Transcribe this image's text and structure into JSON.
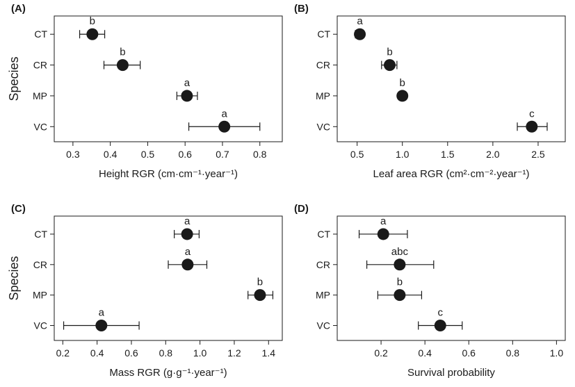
{
  "chart_data": [
    {
      "type": "scatter",
      "panel_label": "(A)",
      "title": "",
      "xlabel": "Height RGR (cm·cm⁻¹·year⁻¹)",
      "ylabel": "Species",
      "categories": [
        "CT",
        "CR",
        "MP",
        "VC"
      ],
      "values": [
        0.352,
        0.433,
        0.605,
        0.705
      ],
      "ci_low": [
        0.318,
        0.383,
        0.578,
        0.61
      ],
      "ci_high": [
        0.385,
        0.48,
        0.633,
        0.8
      ],
      "letters": [
        "b",
        "b",
        "a",
        "a"
      ],
      "xlim": [
        0.25,
        0.86
      ],
      "xticks": [
        0.3,
        0.4,
        0.5,
        0.6,
        0.7,
        0.8
      ],
      "xtick_labels": [
        "0.3",
        "0.4",
        "0.5",
        "0.6",
        "0.7",
        "0.8"
      ],
      "grid": false
    },
    {
      "type": "scatter",
      "panel_label": "(B)",
      "title": "",
      "xlabel": "Leaf area RGR (cm²·cm⁻²·year⁻¹)",
      "ylabel": "",
      "categories": [
        "CT",
        "CR",
        "MP",
        "VC"
      ],
      "values": [
        0.53,
        0.86,
        1.0,
        2.43
      ],
      "ci_low": [
        0.48,
        0.77,
        0.96,
        2.27
      ],
      "ci_high": [
        0.57,
        0.94,
        1.03,
        2.6
      ],
      "letters": [
        "a",
        "b",
        "b",
        "c"
      ],
      "xlim": [
        0.28,
        2.8
      ],
      "xticks": [
        0.5,
        1.0,
        1.5,
        2.0,
        2.5
      ],
      "xtick_labels": [
        "0.5",
        "1.0",
        "1.5",
        "2.0",
        "2.5"
      ],
      "grid": false
    },
    {
      "type": "scatter",
      "panel_label": "(C)",
      "title": "",
      "xlabel": "Mass RGR (g·g⁻¹·year⁻¹)",
      "ylabel": "Species",
      "categories": [
        "CT",
        "CR",
        "MP",
        "VC"
      ],
      "values": [
        0.925,
        0.928,
        1.35,
        0.425
      ],
      "ci_low": [
        0.85,
        0.815,
        1.28,
        0.205
      ],
      "ci_high": [
        0.995,
        1.04,
        1.425,
        0.645
      ],
      "letters": [
        "a",
        "a",
        "b",
        "a"
      ],
      "xlim": [
        0.15,
        1.48
      ],
      "xticks": [
        0.2,
        0.4,
        0.6,
        0.8,
        1.0,
        1.2,
        1.4
      ],
      "xtick_labels": [
        "0.2",
        "0.4",
        "0.6",
        "0.8",
        "1.0",
        "1.2",
        "1.4"
      ],
      "grid": false
    },
    {
      "type": "scatter",
      "panel_label": "(D)",
      "title": "",
      "xlabel": "Survival probability",
      "ylabel": "",
      "categories": [
        "CT",
        "CR",
        "MP",
        "VC"
      ],
      "values": [
        0.21,
        0.285,
        0.285,
        0.47
      ],
      "ci_low": [
        0.1,
        0.135,
        0.185,
        0.37
      ],
      "ci_high": [
        0.32,
        0.44,
        0.385,
        0.57
      ],
      "letters": [
        "a",
        "abc",
        "b",
        "c"
      ],
      "xlim": [
        0.0,
        1.04
      ],
      "xticks": [
        0.2,
        0.4,
        0.6,
        0.8,
        1.0
      ],
      "xtick_labels": [
        "0.2",
        "0.4",
        "0.6",
        "0.8",
        "1.0"
      ],
      "grid": false
    }
  ]
}
